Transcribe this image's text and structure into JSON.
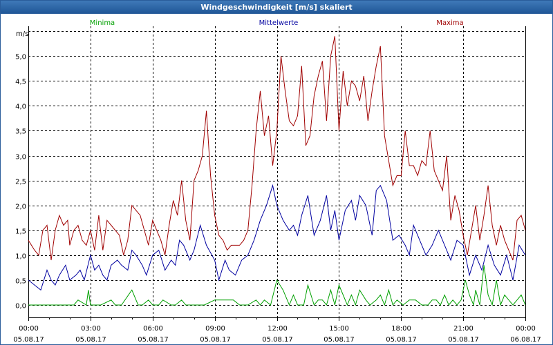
{
  "window": {
    "title": "Windgeschwindigkeit [m/s] skaliert"
  },
  "chart_data": {
    "type": "line",
    "title": "Windgeschwindigkeit [m/s] skaliert",
    "ylabel": "m/s",
    "ylim": [
      -0.25,
      5.6
    ],
    "yticks": [
      0.0,
      0.5,
      1.0,
      1.5,
      2.0,
      2.5,
      3.0,
      3.5,
      4.0,
      4.5,
      5.0
    ],
    "ytick_labels": [
      "0,0",
      "0,5",
      "1,0",
      "1,5",
      "2,0",
      "2,5",
      "3,0",
      "3,5",
      "4,0",
      "4,5",
      "5,0"
    ],
    "xlim": [
      0,
      24
    ],
    "xticks": [
      0,
      3,
      6,
      9,
      12,
      15,
      18,
      21,
      24
    ],
    "xtick_time_labels": [
      "00:00",
      "03:00",
      "06:00",
      "09:00",
      "12:00",
      "15:00",
      "18:00",
      "21:00",
      "00:00"
    ],
    "xtick_date_labels": [
      "05.08.17",
      "05.08.17",
      "05.08.17",
      "05.08.17",
      "05.08.17",
      "05.08.17",
      "05.08.17",
      "05.08.17",
      "06.08.17"
    ],
    "grid": true,
    "legend": "top",
    "series": [
      {
        "name": "Minima",
        "color": "#00a000",
        "x": [
          0,
          2.2,
          2.4,
          2.8,
          2.9,
          3.0,
          3.5,
          4.0,
          4.2,
          4.5,
          5.0,
          5.3,
          5.5,
          5.8,
          6.0,
          6.3,
          6.5,
          6.9,
          7.1,
          7.4,
          7.6,
          8.0,
          8.5,
          9.0,
          9.3,
          9.6,
          9.9,
          10.2,
          10.6,
          11.0,
          11.2,
          11.4,
          11.7,
          12.0,
          12.3,
          12.6,
          12.8,
          13.0,
          13.3,
          13.5,
          13.8,
          14.0,
          14.2,
          14.4,
          14.6,
          14.8,
          15.0,
          15.2,
          15.4,
          15.6,
          15.8,
          16.0,
          16.3,
          16.5,
          16.8,
          17.0,
          17.2,
          17.4,
          17.6,
          17.8,
          18.1,
          18.4,
          18.7,
          19.0,
          19.3,
          19.5,
          19.7,
          19.9,
          20.1,
          20.3,
          20.5,
          20.7,
          20.9,
          21.1,
          21.3,
          21.5,
          21.6,
          21.8,
          22.0,
          22.2,
          22.4,
          22.6,
          22.8,
          23.0,
          23.2,
          23.4,
          23.6,
          23.8,
          24.0
        ],
        "y": [
          0.0,
          0.0,
          0.1,
          0.0,
          0.3,
          0.0,
          0.0,
          0.1,
          0.0,
          0.0,
          0.3,
          0.0,
          0.0,
          0.1,
          0.0,
          0.0,
          0.1,
          0.0,
          0.0,
          0.1,
          0.0,
          0.0,
          0.0,
          0.1,
          0.1,
          0.1,
          0.1,
          0.0,
          0.0,
          0.1,
          0.0,
          0.1,
          0.0,
          0.5,
          0.3,
          0.0,
          0.2,
          0.0,
          0.0,
          0.4,
          0.0,
          0.1,
          0.1,
          0.0,
          0.3,
          0.0,
          0.4,
          0.2,
          0.0,
          0.2,
          0.0,
          0.3,
          0.1,
          0.0,
          0.1,
          0.2,
          0.0,
          0.3,
          0.0,
          0.1,
          0.0,
          0.1,
          0.1,
          0.0,
          0.0,
          0.1,
          0.1,
          0.0,
          0.2,
          0.0,
          0.1,
          0.0,
          0.1,
          0.5,
          0.2,
          0.0,
          0.3,
          0.0,
          0.8,
          0.2,
          0.0,
          0.5,
          0.0,
          0.2,
          0.1,
          0.0,
          0.1,
          0.2,
          0.0
        ]
      },
      {
        "name": "Mittelwerte",
        "color": "#0000a0",
        "x": [
          0,
          0.3,
          0.6,
          0.9,
          1.1,
          1.3,
          1.5,
          1.8,
          2.0,
          2.3,
          2.5,
          2.7,
          3.0,
          3.2,
          3.4,
          3.6,
          3.8,
          4.0,
          4.3,
          4.5,
          4.8,
          5.0,
          5.2,
          5.5,
          5.7,
          6.0,
          6.3,
          6.6,
          6.9,
          7.1,
          7.3,
          7.5,
          7.8,
          8.0,
          8.3,
          8.6,
          9.0,
          9.2,
          9.5,
          9.7,
          10.0,
          10.3,
          10.6,
          10.9,
          11.2,
          11.5,
          11.8,
          12.0,
          12.3,
          12.6,
          12.8,
          13.0,
          13.2,
          13.5,
          13.8,
          14.1,
          14.4,
          14.6,
          14.8,
          15.0,
          15.3,
          15.6,
          15.8,
          16.0,
          16.3,
          16.6,
          16.8,
          17.0,
          17.3,
          17.6,
          17.9,
          18.2,
          18.4,
          18.6,
          18.9,
          19.2,
          19.5,
          19.8,
          20.1,
          20.4,
          20.7,
          21.0,
          21.3,
          21.6,
          21.9,
          22.2,
          22.5,
          22.8,
          23.1,
          23.4,
          23.7,
          24.0
        ],
        "y": [
          0.5,
          0.4,
          0.3,
          0.7,
          0.5,
          0.4,
          0.6,
          0.8,
          0.5,
          0.6,
          0.7,
          0.5,
          1.0,
          0.7,
          0.8,
          0.6,
          0.5,
          0.8,
          0.9,
          0.8,
          0.7,
          1.1,
          1.0,
          0.8,
          0.6,
          1.0,
          1.1,
          0.7,
          0.9,
          0.8,
          1.3,
          1.2,
          0.9,
          1.1,
          1.6,
          1.2,
          0.9,
          0.5,
          0.9,
          0.7,
          0.6,
          0.9,
          1.0,
          1.3,
          1.7,
          2.0,
          2.4,
          2.0,
          1.7,
          1.5,
          1.6,
          1.4,
          1.8,
          2.2,
          1.4,
          1.7,
          2.2,
          1.5,
          1.9,
          1.3,
          1.9,
          2.1,
          1.7,
          2.2,
          2.0,
          1.4,
          2.3,
          2.4,
          2.1,
          1.3,
          1.4,
          1.2,
          1.0,
          1.6,
          1.3,
          1.0,
          1.2,
          1.5,
          1.2,
          0.9,
          1.3,
          1.2,
          0.6,
          1.0,
          0.7,
          1.2,
          0.8,
          0.6,
          1.0,
          0.5,
          1.2,
          1.0
        ]
      },
      {
        "name": "Maxima",
        "color": "#a00000",
        "x": [
          0,
          0.3,
          0.5,
          0.7,
          0.9,
          1.1,
          1.3,
          1.5,
          1.7,
          1.9,
          2.0,
          2.2,
          2.4,
          2.6,
          2.8,
          3.0,
          3.2,
          3.4,
          3.6,
          3.8,
          4.0,
          4.2,
          4.4,
          4.6,
          4.8,
          5.0,
          5.2,
          5.4,
          5.6,
          5.8,
          6.0,
          6.2,
          6.4,
          6.6,
          6.8,
          7.0,
          7.2,
          7.4,
          7.6,
          7.8,
          8.0,
          8.2,
          8.4,
          8.6,
          8.8,
          9.0,
          9.2,
          9.4,
          9.6,
          9.8,
          10.0,
          10.2,
          10.4,
          10.6,
          10.8,
          11.0,
          11.2,
          11.4,
          11.6,
          11.8,
          12.0,
          12.2,
          12.4,
          12.6,
          12.8,
          13.0,
          13.2,
          13.4,
          13.6,
          13.8,
          14.0,
          14.2,
          14.4,
          14.6,
          14.8,
          15.0,
          15.2,
          15.4,
          15.6,
          15.8,
          16.0,
          16.2,
          16.4,
          16.6,
          16.8,
          17.0,
          17.2,
          17.4,
          17.6,
          17.8,
          18.0,
          18.2,
          18.4,
          18.6,
          18.8,
          19.0,
          19.2,
          19.4,
          19.6,
          19.8,
          20.0,
          20.2,
          20.4,
          20.6,
          20.8,
          21.0,
          21.2,
          21.4,
          21.6,
          21.8,
          22.0,
          22.2,
          22.4,
          22.6,
          22.8,
          23.0,
          23.2,
          23.4,
          23.6,
          23.8,
          24.0
        ],
        "y": [
          1.3,
          1.1,
          1.0,
          1.5,
          1.6,
          0.9,
          1.5,
          1.8,
          1.6,
          1.7,
          1.2,
          1.5,
          1.6,
          1.3,
          1.2,
          1.5,
          1.1,
          1.8,
          1.1,
          1.7,
          1.6,
          1.5,
          1.4,
          1.0,
          1.3,
          2.0,
          1.9,
          1.8,
          1.5,
          1.2,
          1.7,
          1.5,
          1.3,
          1.0,
          1.6,
          2.1,
          1.8,
          2.5,
          1.7,
          1.3,
          2.5,
          2.7,
          3.0,
          3.9,
          2.6,
          1.8,
          1.4,
          1.3,
          1.1,
          1.2,
          1.2,
          1.2,
          1.3,
          1.5,
          2.4,
          3.5,
          4.3,
          3.4,
          3.8,
          2.8,
          3.5,
          5.0,
          4.3,
          3.7,
          3.6,
          3.8,
          4.8,
          3.2,
          3.4,
          4.2,
          4.6,
          4.9,
          3.7,
          5.0,
          5.4,
          3.5,
          4.7,
          4.0,
          4.5,
          4.4,
          4.1,
          4.6,
          3.7,
          4.3,
          4.8,
          5.2,
          3.4,
          2.9,
          2.4,
          2.6,
          2.6,
          3.5,
          2.8,
          2.8,
          2.6,
          2.9,
          2.8,
          3.5,
          2.7,
          2.5,
          2.3,
          3.0,
          1.7,
          2.2,
          1.9,
          1.4,
          1.0,
          1.5,
          2.0,
          1.3,
          1.8,
          2.4,
          1.6,
          1.2,
          1.6,
          1.3,
          1.1,
          0.9,
          1.7,
          1.8,
          1.5
        ]
      }
    ]
  }
}
